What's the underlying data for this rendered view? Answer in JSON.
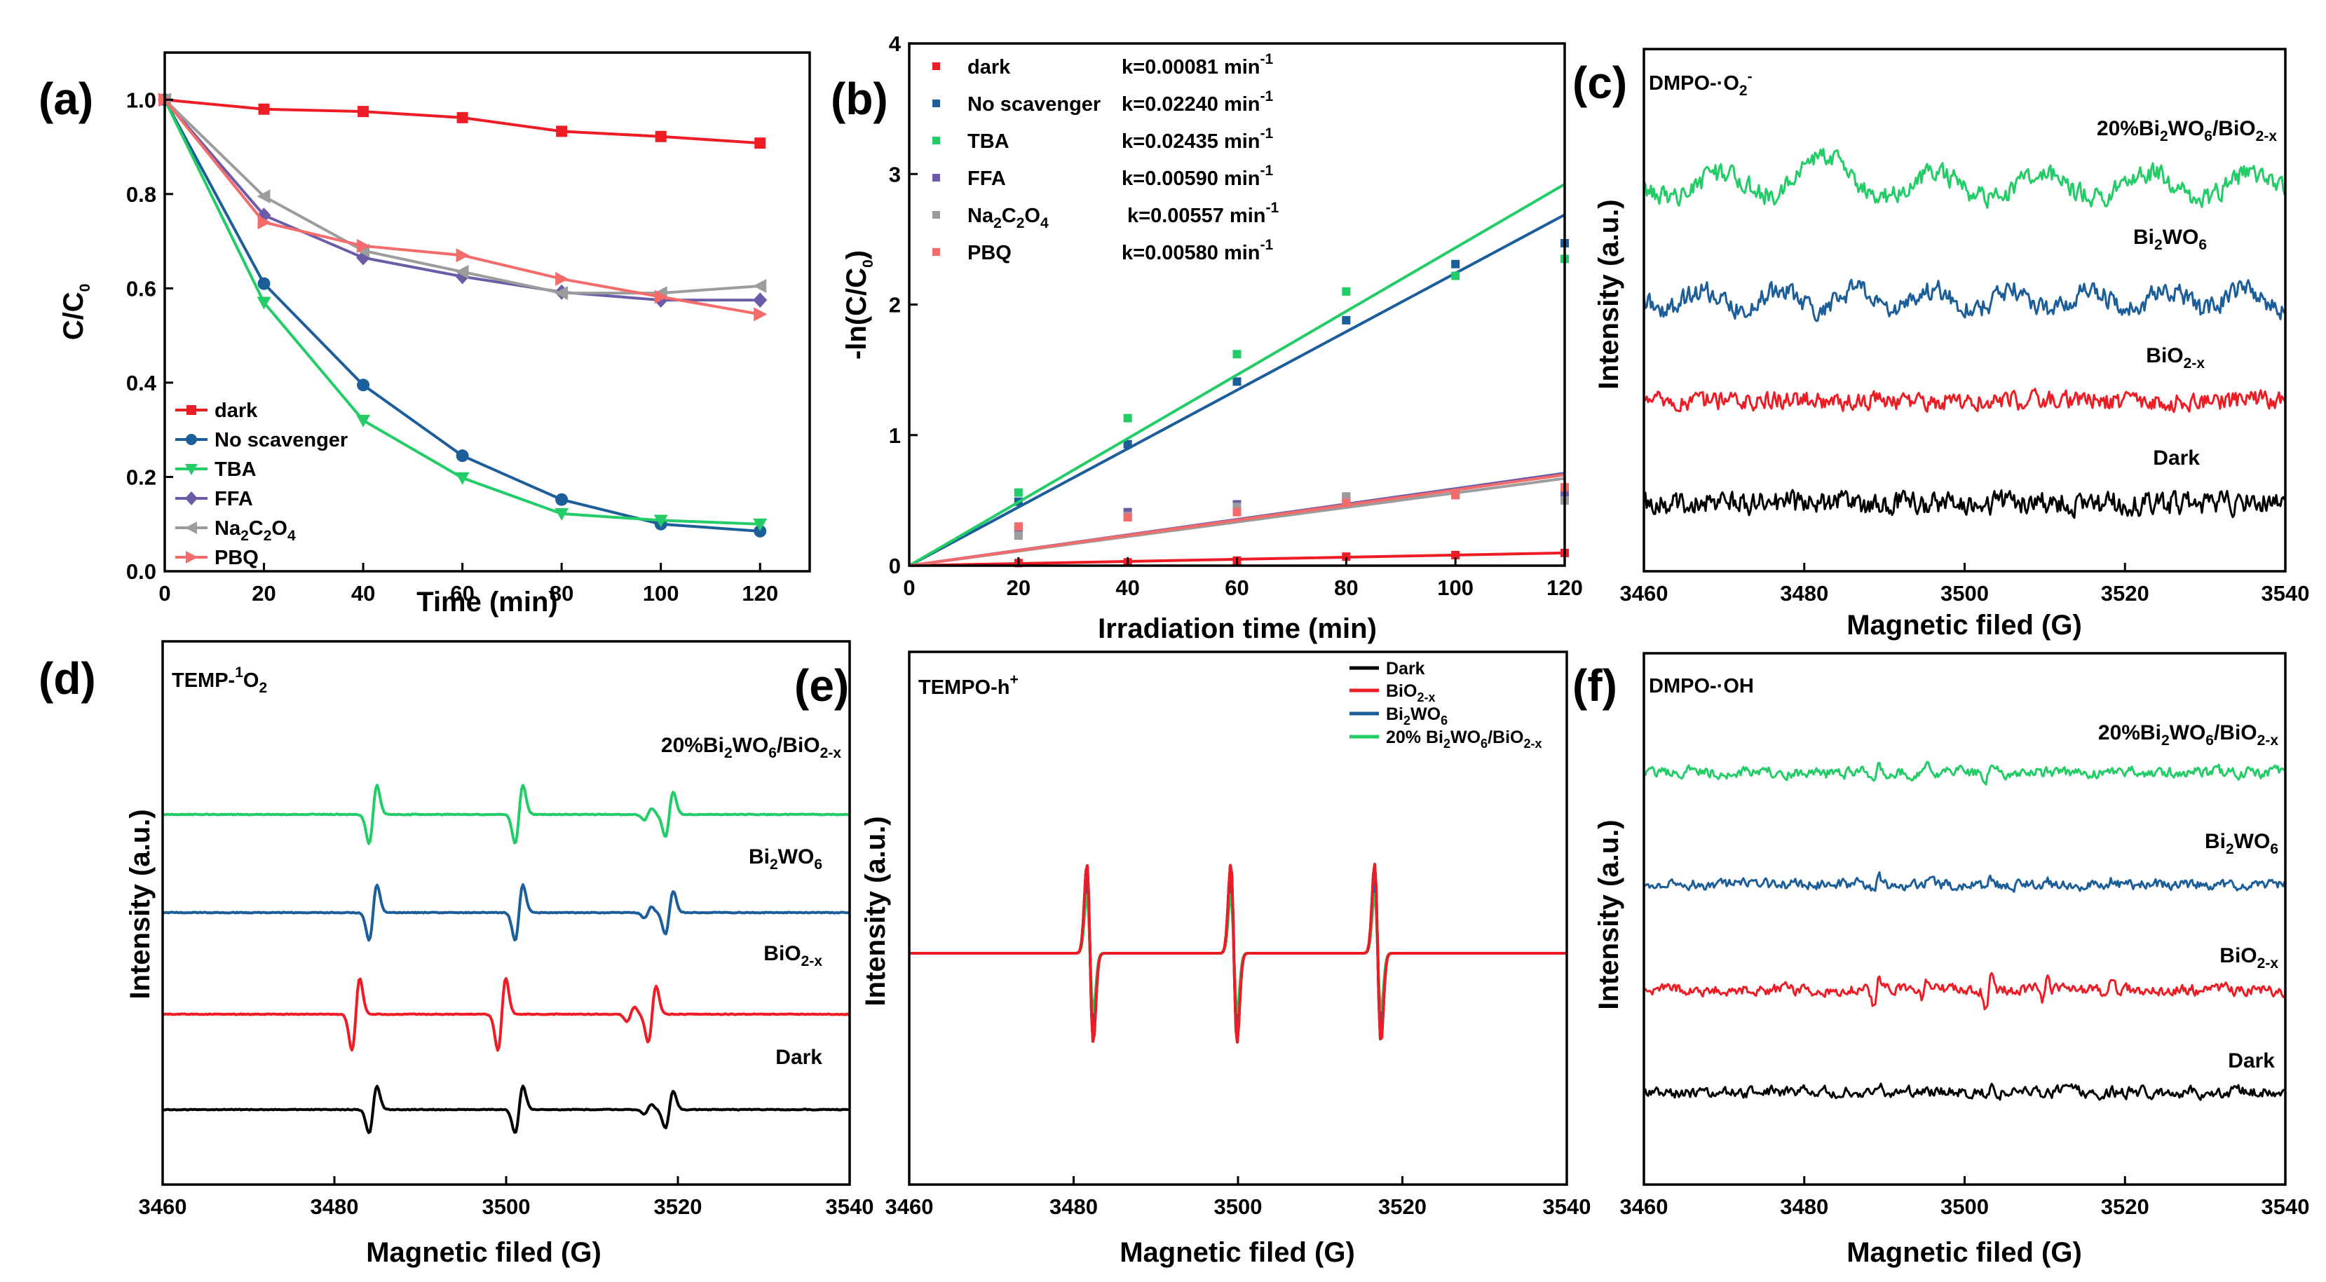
{
  "chart_data": [
    {
      "panel": "(a)",
      "type": "line",
      "title": "",
      "xlabel": "Time (min)",
      "ylabel": "C/C0",
      "xlim": [
        0,
        130
      ],
      "ylim": [
        0,
        1.1
      ],
      "xticks": [
        "0",
        "20",
        "40",
        "60",
        "80",
        "100",
        "120"
      ],
      "yticks": [
        "0.0",
        "0.2",
        "0.4",
        "0.6",
        "0.8",
        "1.0"
      ],
      "legend_position": "bottom-left",
      "x": [
        0,
        20,
        40,
        60,
        80,
        100,
        120
      ],
      "series": [
        {
          "name": "dark",
          "color": "#ee1c25",
          "marker": "square",
          "values": [
            1.0,
            0.98,
            0.975,
            0.962,
            0.933,
            0.922,
            0.908
          ]
        },
        {
          "name": "No scavenger",
          "color": "#1c5e99",
          "marker": "circle",
          "values": [
            1.0,
            0.61,
            0.395,
            0.245,
            0.152,
            0.1,
            0.085
          ]
        },
        {
          "name": "TBA",
          "color": "#22cc66",
          "marker": "triangle-down",
          "values": [
            1.0,
            0.57,
            0.32,
            0.198,
            0.122,
            0.108,
            0.1
          ]
        },
        {
          "name": "FFA",
          "color": "#6c5ca8",
          "marker": "diamond",
          "values": [
            1.0,
            0.755,
            0.665,
            0.625,
            0.592,
            0.575,
            0.575
          ]
        },
        {
          "name": "Na2C2O4",
          "color": "#9c9c9c",
          "marker": "triangle-left",
          "values": [
            1.0,
            0.795,
            0.68,
            0.635,
            0.59,
            0.59,
            0.605
          ]
        },
        {
          "name": "PBQ",
          "color": "#f36b6b",
          "marker": "triangle-right",
          "values": [
            1.0,
            0.74,
            0.69,
            0.67,
            0.62,
            0.582,
            0.545
          ]
        }
      ],
      "legend_labels": {
        "dark": "dark",
        "noscav": "No scavenger",
        "tba": "TBA",
        "ffa": "FFA",
        "na_main": "Na",
        "na_s1": "2",
        "na_mid": "C",
        "na_s2": "2",
        "na_mid2": "O",
        "na_s3": "4",
        "pbq": "PBQ"
      }
    },
    {
      "panel": "(b)",
      "type": "scatter",
      "xlabel": "Irradiation time (min)",
      "ylabel": "-ln(C/C0)",
      "xlim": [
        0,
        120
      ],
      "ylim": [
        0,
        4
      ],
      "xticks": [
        "0",
        "20",
        "40",
        "60",
        "80",
        "100",
        "120"
      ],
      "yticks": [
        "0",
        "1",
        "2",
        "3",
        "4"
      ],
      "legend_position": "top-left",
      "x": [
        20,
        40,
        60,
        80,
        100,
        120
      ],
      "series": [
        {
          "name": "dark",
          "k": "k=0.00081 min",
          "color": "#ee1c25",
          "slope": 0.00081,
          "values": [
            0.02,
            0.025,
            0.039,
            0.069,
            0.081,
            0.097
          ]
        },
        {
          "name": "No scavenger",
          "k": "k=0.02240 min",
          "color": "#1c5e99",
          "slope": 0.0224,
          "values": [
            0.49,
            0.93,
            1.41,
            1.88,
            2.31,
            2.47
          ]
        },
        {
          "name": "TBA",
          "k": "k=0.02435 min",
          "color": "#22cc66",
          "slope": 0.02435,
          "values": [
            0.56,
            1.13,
            1.62,
            2.1,
            2.22,
            2.35
          ]
        },
        {
          "name": "FFA",
          "k": "k=0.00590 min",
          "color": "#6c5ca8",
          "slope": 0.0059,
          "values": [
            0.28,
            0.41,
            0.47,
            0.52,
            0.55,
            0.56
          ]
        },
        {
          "name": "Na2C2O4",
          "k": "k=0.00557 min",
          "color": "#9c9c9c",
          "slope": 0.00557,
          "values": [
            0.23,
            0.38,
            0.45,
            0.53,
            0.54,
            0.5
          ]
        },
        {
          "name": "PBQ",
          "k": "k=0.00580 min",
          "color": "#f36b6b",
          "slope": 0.0058,
          "values": [
            0.3,
            0.37,
            0.41,
            0.48,
            0.54,
            0.6
          ]
        }
      ],
      "k_superscript": "-1",
      "legend_labels": {
        "dark": "dark",
        "noscav": "No scavenger",
        "tba": "TBA",
        "ffa": "FFA",
        "na_main": "Na",
        "na_s1": "2",
        "na_mid": "C",
        "na_s2": "2",
        "na_mid2": "O",
        "na_s3": "4",
        "pbq": "PBQ"
      }
    },
    {
      "panel": "(c)",
      "type": "line",
      "title": "DMPO-·O2-",
      "title_parts": {
        "main": "DMPO-·O",
        "sub": "2",
        "sup": "-"
      },
      "xlabel": "Magnetic filed (G)",
      "ylabel": "Intensity (a.u.)",
      "xlim": [
        3460,
        3540
      ],
      "xticks": [
        "3460",
        "3480",
        "3500",
        "3520",
        "3540"
      ],
      "spectrum": "noisy EPR (no clear DMPO-·O2- adduct peaks)",
      "series": [
        {
          "name": "20%Bi2WO6/BiO2-x",
          "color": "#22cc66"
        },
        {
          "name": "Bi2WO6",
          "color": "#1c5e99"
        },
        {
          "name": "BiO2-x",
          "color": "#ee1c25"
        },
        {
          "name": "Dark",
          "color": "#000000"
        }
      ],
      "trace_labels": {
        "composite": {
          "a": "20%Bi",
          "s1": "2",
          "b": "WO",
          "s2": "6",
          "c": "/BiO",
          "s3": "2-x"
        },
        "bi2wo6": {
          "a": "Bi",
          "s1": "2",
          "b": "WO",
          "s2": "6"
        },
        "bio2x": {
          "a": "BiO",
          "s1": "2-x"
        },
        "dark": "Dark"
      }
    },
    {
      "panel": "(d)",
      "type": "line",
      "title": "TEMP-1O2",
      "title_parts": {
        "main": "TEMP-",
        "sup": "1",
        "mid": "O",
        "sub": "2"
      },
      "xlabel": "Magnetic filed (G)",
      "ylabel": "Intensity (a.u.)",
      "xlim": [
        3460,
        3540
      ],
      "xticks": [
        "3460",
        "3480",
        "3500",
        "3520",
        "3540"
      ],
      "peak_centers_G": [
        3484.5,
        3501.5,
        3519
      ],
      "series": [
        {
          "name": "20%Bi2WO6/BiO2-x",
          "color": "#22cc66",
          "relative_amplitude": 0.85
        },
        {
          "name": "Bi2WO6",
          "color": "#1c5e99",
          "relative_amplitude": 0.8
        },
        {
          "name": "BiO2-x",
          "color": "#ee1c25",
          "relative_amplitude": 1.0
        },
        {
          "name": "Dark",
          "color": "#000000",
          "relative_amplitude": 0.7
        }
      ],
      "trace_labels": {
        "composite": {
          "a": "20%Bi",
          "s1": "2",
          "b": "WO",
          "s2": "6",
          "c": "/BiO",
          "s3": "2-x"
        },
        "bi2wo6": {
          "a": "Bi",
          "s1": "2",
          "b": "WO",
          "s2": "6"
        },
        "bio2x": {
          "a": "BiO",
          "s1": "2-x"
        },
        "dark": "Dark"
      }
    },
    {
      "panel": "(e)",
      "type": "line",
      "title": "TEMPO-h+",
      "title_parts": {
        "main": "TEMPO-h",
        "sup": "+"
      },
      "xlabel": "Magnetic filed (G)",
      "ylabel": "Intensity (a.u.)",
      "xlim": [
        3460,
        3540
      ],
      "xticks": [
        "3460",
        "3480",
        "3500",
        "3520",
        "3540"
      ],
      "peak_centers_G": [
        3482,
        3499.5,
        3517
      ],
      "legend_position": "top-right",
      "series": [
        {
          "name": "Dark",
          "color": "#000000",
          "relative_amplitude": 1.0
        },
        {
          "name": "BiO2-x",
          "color": "#ee1c25",
          "relative_amplitude": 1.0
        },
        {
          "name": "Bi2WO6",
          "color": "#1c5e99",
          "relative_amplitude": 0.8
        },
        {
          "name": "20% Bi2WO6/BiO2-x",
          "color": "#22cc66",
          "relative_amplitude": 0.65
        }
      ],
      "legend_labels": {
        "dark": "Dark",
        "bio2x": {
          "a": "BiO",
          "s1": "2-x"
        },
        "bi2wo6": {
          "a": "Bi",
          "s1": "2",
          "b": "WO",
          "s2": "6"
        },
        "composite": {
          "a": "20% Bi",
          "s1": "2",
          "b": "WO",
          "s2": "6",
          "c": "/BiO",
          "s3": "2-x"
        }
      }
    },
    {
      "panel": "(f)",
      "type": "line",
      "title": "DMPO-·OH",
      "xlabel": "Magnetic filed (G)",
      "ylabel": "Intensity (a.u.)",
      "xlim": [
        3460,
        3540
      ],
      "xticks": [
        "3460",
        "3480",
        "3500",
        "3520",
        "3540"
      ],
      "spectrum": "weak noisy EPR with small features near 3489, 3503, 3518 G",
      "series": [
        {
          "name": "20%Bi2WO6/BiO2-x",
          "color": "#22cc66"
        },
        {
          "name": "Bi2WO6",
          "color": "#1c5e99"
        },
        {
          "name": "BiO2-x",
          "color": "#ee1c25"
        },
        {
          "name": "Dark",
          "color": "#000000"
        }
      ],
      "trace_labels": {
        "composite": {
          "a": "20%Bi",
          "s1": "2",
          "b": "WO",
          "s2": "6",
          "c": "/BiO",
          "s3": "2-x"
        },
        "bi2wo6": {
          "a": "Bi",
          "s1": "2",
          "b": "WO",
          "s2": "6"
        },
        "bio2x": {
          "a": "BiO",
          "s1": "2-x"
        },
        "dark": "Dark"
      }
    }
  ]
}
